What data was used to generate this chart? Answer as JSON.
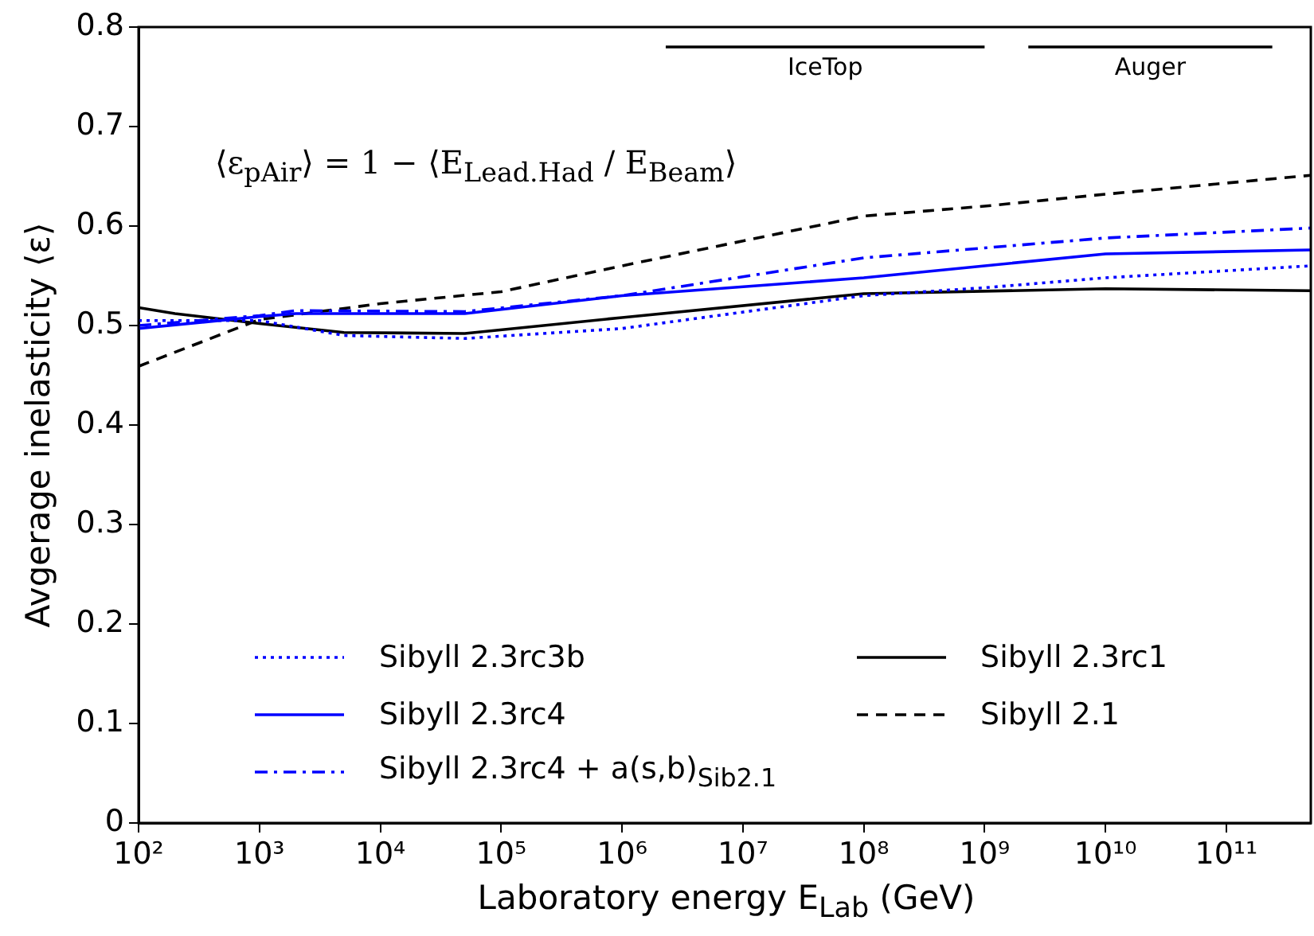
{
  "chart_data": {
    "type": "line",
    "xlabel": "Laboratory energy E$_{Lab}$ (GeV)",
    "ylabel": "Avgerage inelasticity ⟨ε⟩",
    "log": "x",
    "xlim": [
      100,
      500000000000
    ],
    "ylim": [
      0,
      0.8
    ],
    "xticks": [
      {
        "value": 100,
        "label": "10²"
      },
      {
        "value": 1000,
        "label": "10³"
      },
      {
        "value": 10000,
        "label": "10⁴"
      },
      {
        "value": 100000,
        "label": "10⁵"
      },
      {
        "value": 1000000,
        "label": "10⁶"
      },
      {
        "value": 10000000,
        "label": "10⁷"
      },
      {
        "value": 100000000,
        "label": "10⁸"
      },
      {
        "value": 1000000000,
        "label": "10⁹"
      },
      {
        "value": 10000000000,
        "label": "10¹⁰"
      },
      {
        "value": 100000000000,
        "label": "10¹¹"
      }
    ],
    "yticks": [
      0,
      0.1,
      0.2,
      0.3,
      0.4,
      0.5,
      0.6,
      0.7,
      0.8
    ],
    "grid": false,
    "legend": "bottom",
    "marker": "none",
    "series": [
      {
        "name": "Sibyll 2.3rc3b",
        "color": "#0000ff",
        "line_style": "dotted",
        "x": [
          100,
          1000,
          5000,
          50000,
          1000000,
          100000000,
          1000000000,
          10000000000,
          500000000000
        ],
        "values": [
          0.505,
          0.505,
          0.49,
          0.487,
          0.497,
          0.53,
          0.538,
          0.548,
          0.56
        ]
      },
      {
        "name": "Sibyll 2.3rc4",
        "color": "#0000ff",
        "line_style": "solid",
        "x": [
          100,
          1000,
          2000,
          50000,
          1000000,
          100000000,
          10000000000,
          500000000000
        ],
        "values": [
          0.497,
          0.509,
          0.512,
          0.512,
          0.53,
          0.548,
          0.572,
          0.576
        ]
      },
      {
        "name": "Sibyll 2.3rc4 + a(s,b)$_{Sib2.1}$",
        "color": "#0000ff",
        "line_style": "dashdot",
        "x": [
          100,
          1000,
          2000,
          50000,
          1000000,
          100000000,
          10000000000,
          500000000000
        ],
        "values": [
          0.5,
          0.51,
          0.515,
          0.514,
          0.53,
          0.568,
          0.588,
          0.598
        ]
      },
      {
        "name": "Sibyll 2.3rc1",
        "color": "#000000",
        "line_style": "solid",
        "x": [
          100,
          200,
          1000,
          5000,
          50000,
          1000000,
          100000000,
          10000000000,
          500000000000
        ],
        "values": [
          0.518,
          0.512,
          0.502,
          0.493,
          0.492,
          0.508,
          0.532,
          0.537,
          0.535
        ]
      },
      {
        "name": "Sibyll 2.1",
        "color": "#000000",
        "line_style": "dashed",
        "x": [
          100,
          1000,
          10000,
          100000,
          1000000,
          10000000,
          100000000,
          1000000000,
          10000000000,
          500000000000
        ],
        "values": [
          0.459,
          0.506,
          0.522,
          0.534,
          0.56,
          0.585,
          0.61,
          0.62,
          0.632,
          0.651
        ]
      },
      {
        "type": "line",
        "color": "#000000",
        "line_style": "solid",
        "x": [
          2300000,
          1000000000
        ],
        "values": [
          0.78,
          0.78
        ]
      },
      {
        "type": "line",
        "color": "#000000",
        "line_style": "solid",
        "x": [
          2300000000,
          240000000000
        ],
        "values": [
          0.78,
          0.78
        ]
      }
    ],
    "annotations": [
      "⟨ε$_{pAir}$⟩ = 1 − ⟨E$_{Lead.Had}$ / E$_{Beam}$⟩",
      {
        "text": "IceTop",
        "x": 48000000,
        "y": 0.78
      },
      {
        "text": "Auger",
        "x": 23500000000,
        "y": 0.78
      }
    ]
  }
}
